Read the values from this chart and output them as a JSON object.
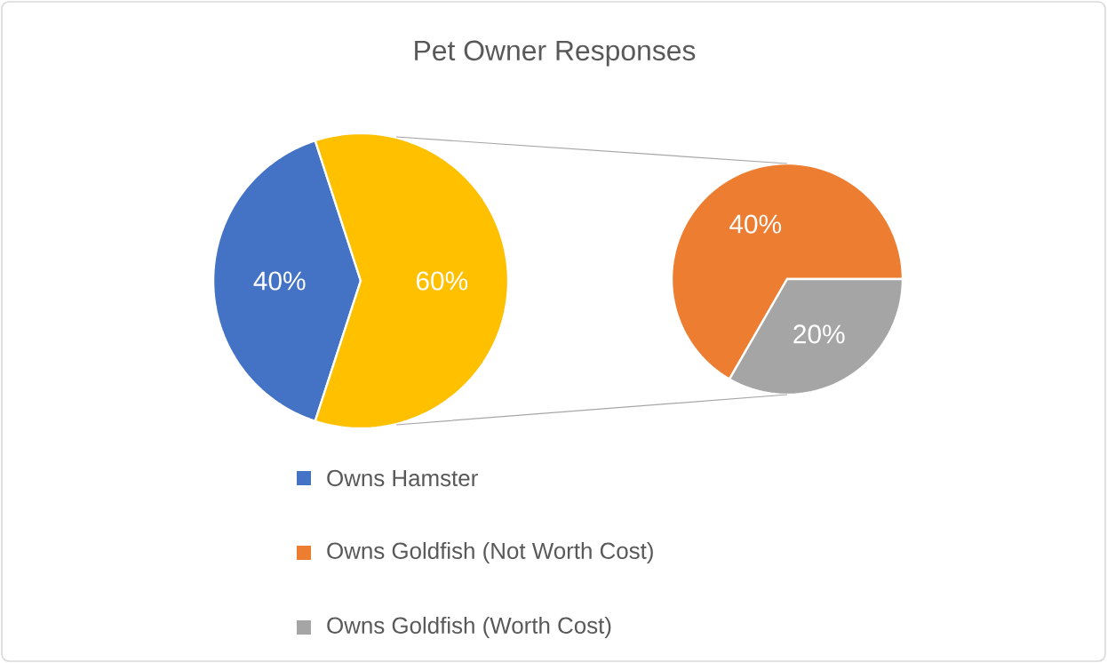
{
  "chart_data": [
    {
      "type": "pie",
      "title": "Pet Owner Responses",
      "categories": [
        "Owns Hamster",
        null
      ],
      "values": [
        40,
        60
      ],
      "colors": [
        "#4472c4",
        "#ffc000"
      ],
      "value_labels": [
        "40%",
        "60%"
      ],
      "legend": "bottom"
    },
    {
      "type": "pie",
      "categories": [
        "Owns Goldfish (Not Worth Cost)",
        "Owns Goldfish (Worth Cost)"
      ],
      "values": [
        40,
        20
      ],
      "colors": [
        "#ed7d31",
        "#a5a5a5"
      ],
      "value_labels": [
        "40%",
        "20%"
      ],
      "legend": "bottom"
    }
  ]
}
